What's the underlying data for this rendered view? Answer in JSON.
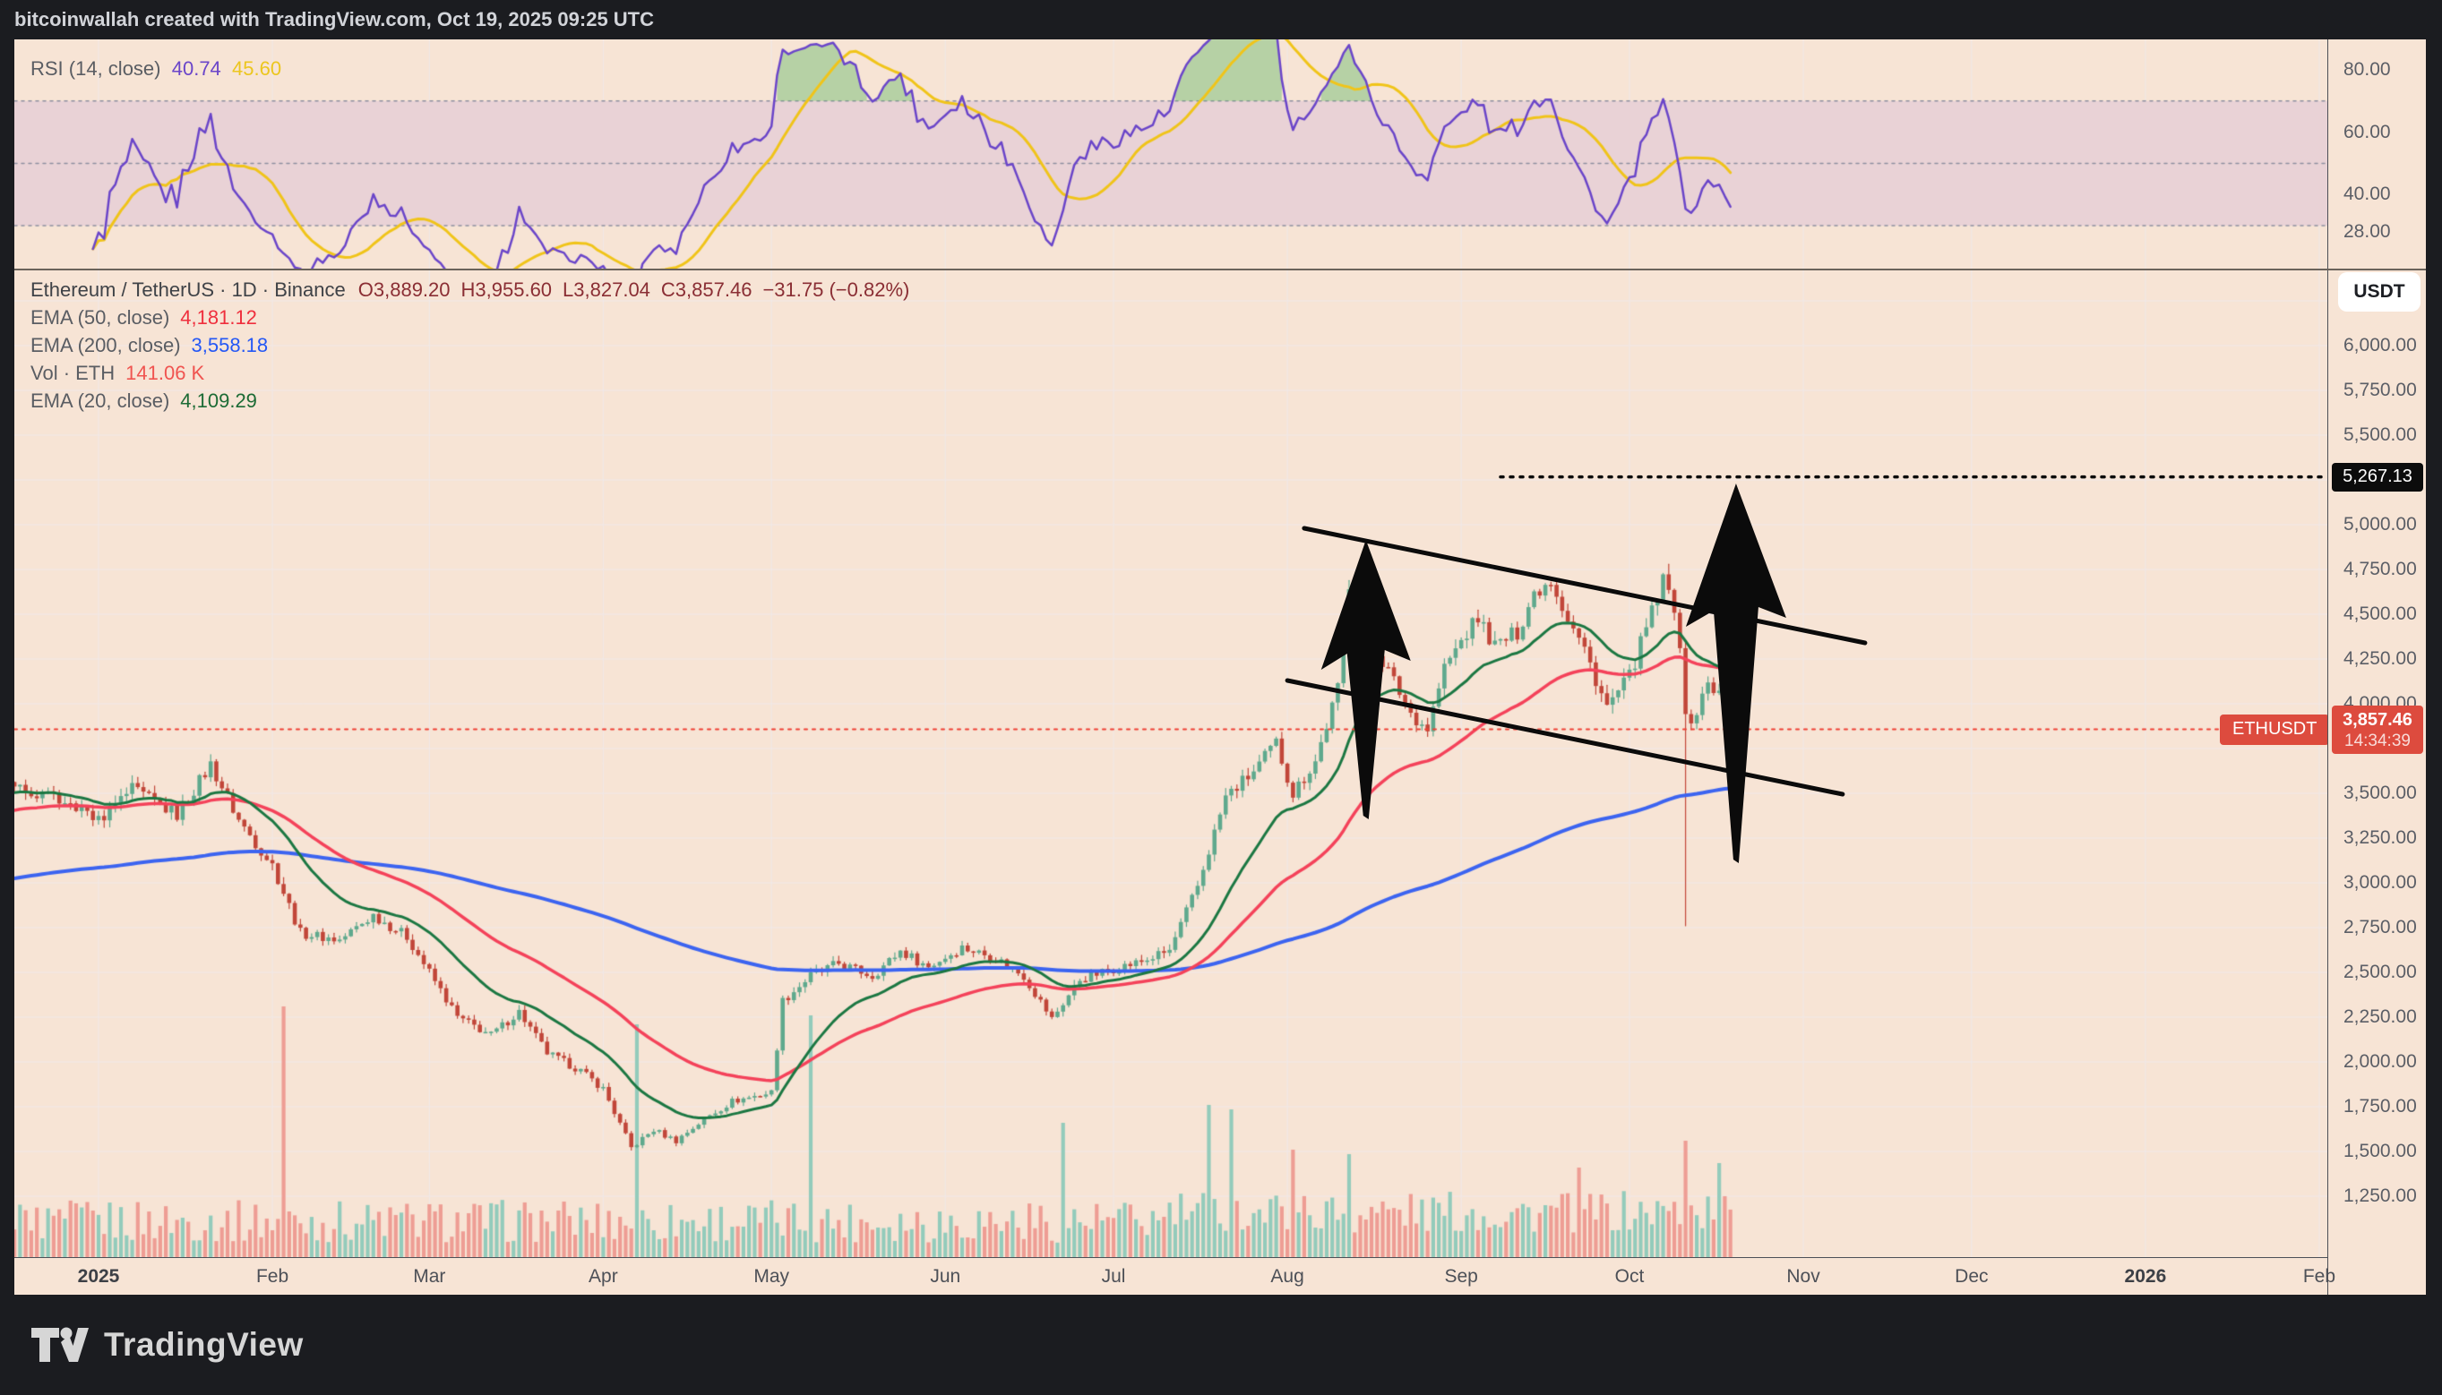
{
  "header": {
    "title": "bitcoinwallah created with TradingView.com, Oct 19, 2025 09:25 UTC"
  },
  "rsi_pane": {
    "label": "RSI (14, close)",
    "value": "40.74",
    "ma_value": "45.60",
    "value_color": "#6a45c9",
    "ma_color": "#ecc61e",
    "ticks": [
      {
        "label": "80.00",
        "value": 80
      },
      {
        "label": "60.00",
        "value": 60
      },
      {
        "label": "40.00",
        "value": 40
      },
      {
        "label": "28.00",
        "value": 28
      }
    ]
  },
  "main_pane": {
    "legend": {
      "title": "Ethereum / TetherUS · 1D · Binance",
      "open": "O3,889.20",
      "high": "H3,955.60",
      "low": "L3,827.04",
      "close": "C3,857.46",
      "change": "−31.75 (−0.82%)"
    },
    "indicators": [
      {
        "label": "EMA (50, close)",
        "value": "4,181.12",
        "color": "#ef2f3d"
      },
      {
        "label": "EMA (200, close)",
        "value": "3,558.18",
        "color": "#2457f5"
      },
      {
        "label": "Vol · ETH",
        "value": "141.06 K",
        "color": "#f05450"
      },
      {
        "label": "EMA (20, close)",
        "value": "4,109.29",
        "color": "#1c6b35"
      }
    ]
  },
  "price_scale": {
    "currency_button": "USDT",
    "symbol_label": "ETHUSDT",
    "target_label": {
      "text": "5,267.13",
      "value": 5267.13
    },
    "price_label": {
      "text": "3,857.46",
      "countdown": "14:34:39",
      "value": 3857.46,
      "color": "#dd4b3e"
    },
    "ticks": [
      {
        "label": "6,000.00",
        "value": 6000
      },
      {
        "label": "5,750.00",
        "value": 5750
      },
      {
        "label": "5,500.00",
        "value": 5500
      },
      {
        "label": "5,000.00",
        "value": 5000
      },
      {
        "label": "4,750.00",
        "value": 4750
      },
      {
        "label": "4,500.00",
        "value": 4500
      },
      {
        "label": "4,250.00",
        "value": 4250
      },
      {
        "label": "4,000.00",
        "value": 4000
      },
      {
        "label": "3,500.00",
        "value": 3500
      },
      {
        "label": "3,250.00",
        "value": 3250
      },
      {
        "label": "3,000.00",
        "value": 3000
      },
      {
        "label": "2,750.00",
        "value": 2750
      },
      {
        "label": "2,500.00",
        "value": 2500
      },
      {
        "label": "2,250.00",
        "value": 2250
      },
      {
        "label": "2,000.00",
        "value": 2000
      },
      {
        "label": "1,750.00",
        "value": 1750
      },
      {
        "label": "1,500.00",
        "value": 1500
      },
      {
        "label": "1,250.00",
        "value": 1250
      }
    ]
  },
  "time_scale": {
    "ticks": [
      {
        "label": "2025",
        "t": "2025-01-01",
        "bold": true
      },
      {
        "label": "Feb",
        "t": "2025-02-01"
      },
      {
        "label": "Mar",
        "t": "2025-03-01"
      },
      {
        "label": "Apr",
        "t": "2025-04-01"
      },
      {
        "label": "May",
        "t": "2025-05-01"
      },
      {
        "label": "Jun",
        "t": "2025-06-01"
      },
      {
        "label": "Jul",
        "t": "2025-07-01"
      },
      {
        "label": "Aug",
        "t": "2025-08-01"
      },
      {
        "label": "Sep",
        "t": "2025-09-01"
      },
      {
        "label": "Oct",
        "t": "2025-10-01"
      },
      {
        "label": "Nov",
        "t": "2025-11-01"
      },
      {
        "label": "Dec",
        "t": "2025-12-01"
      },
      {
        "label": "2026",
        "t": "2026-01-01",
        "bold": true
      },
      {
        "label": "Feb",
        "t": "2026-02-01"
      }
    ]
  },
  "footer": {
    "logo_text": "TradingView"
  },
  "chart_data": {
    "type": "candlestick",
    "symbol": "ETHUSDT",
    "name": "Ethereum / TetherUS",
    "exchange": "Binance",
    "interval": "1D",
    "ohlc_last": {
      "open": 3889.2,
      "high": 3955.6,
      "low": 3827.04,
      "close": 3857.46,
      "change": -31.75,
      "change_pct": -0.82
    },
    "ema_values": {
      "ema20": 4109.29,
      "ema50": 4181.12,
      "ema200": 3558.18
    },
    "volume_last": "141.06 K",
    "current_price": 3857.46,
    "target_price": 5267.13,
    "price_axis_range": [
      910,
      6420
    ],
    "time_range": [
      "2024-12-17",
      "2026-02-07"
    ],
    "price_path": [
      [
        "2024-12-17",
        3550
      ],
      [
        "2024-12-24",
        3480
      ],
      [
        "2025-01-01",
        3350
      ],
      [
        "2025-01-07",
        3520
      ],
      [
        "2025-01-15",
        3380
      ],
      [
        "2025-01-21",
        3660
      ],
      [
        "2025-01-26",
        3350
      ],
      [
        "2025-02-01",
        3100
      ],
      [
        "2025-02-06",
        2720
      ],
      [
        "2025-02-13",
        2680
      ],
      [
        "2025-02-19",
        2820
      ],
      [
        "2025-02-25",
        2700
      ],
      [
        "2025-03-01",
        2500
      ],
      [
        "2025-03-06",
        2250
      ],
      [
        "2025-03-12",
        2150
      ],
      [
        "2025-03-17",
        2280
      ],
      [
        "2025-03-22",
        2050
      ],
      [
        "2025-03-28",
        1950
      ],
      [
        "2025-04-01",
        1850
      ],
      [
        "2025-04-06",
        1520
      ],
      [
        "2025-04-10",
        1620
      ],
      [
        "2025-04-14",
        1560
      ],
      [
        "2025-04-19",
        1680
      ],
      [
        "2025-04-24",
        1780
      ],
      [
        "2025-05-01",
        1830
      ],
      [
        "2025-05-03",
        2340
      ],
      [
        "2025-05-08",
        2480
      ],
      [
        "2025-05-13",
        2550
      ],
      [
        "2025-05-19",
        2480
      ],
      [
        "2025-05-24",
        2620
      ],
      [
        "2025-05-29",
        2530
      ],
      [
        "2025-06-04",
        2640
      ],
      [
        "2025-06-10",
        2580
      ],
      [
        "2025-06-15",
        2480
      ],
      [
        "2025-06-20",
        2240
      ],
      [
        "2025-06-25",
        2460
      ],
      [
        "2025-07-01",
        2520
      ],
      [
        "2025-07-06",
        2560
      ],
      [
        "2025-07-11",
        2620
      ],
      [
        "2025-07-16",
        2980
      ],
      [
        "2025-07-21",
        3480
      ],
      [
        "2025-07-26",
        3620
      ],
      [
        "2025-07-30",
        3780
      ],
      [
        "2025-08-02",
        3500
      ],
      [
        "2025-08-06",
        3680
      ],
      [
        "2025-08-10",
        4080
      ],
      [
        "2025-08-12",
        4680
      ],
      [
        "2025-08-15",
        4420
      ],
      [
        "2025-08-19",
        4180
      ],
      [
        "2025-08-23",
        3950
      ],
      [
        "2025-08-26",
        3860
      ],
      [
        "2025-08-29",
        4200
      ],
      [
        "2025-09-01",
        4350
      ],
      [
        "2025-09-04",
        4480
      ],
      [
        "2025-09-07",
        4320
      ],
      [
        "2025-09-11",
        4400
      ],
      [
        "2025-09-14",
        4620
      ],
      [
        "2025-09-17",
        4700
      ],
      [
        "2025-09-20",
        4480
      ],
      [
        "2025-09-23",
        4300
      ],
      [
        "2025-09-27",
        3980
      ],
      [
        "2025-10-01",
        4150
      ],
      [
        "2025-10-04",
        4420
      ],
      [
        "2025-10-07",
        4680
      ],
      [
        "2025-10-09",
        4550
      ],
      [
        "2025-10-10",
        4350
      ],
      [
        "2025-10-11",
        3900
      ],
      [
        "2025-10-13",
        3950
      ],
      [
        "2025-10-15",
        4120
      ],
      [
        "2025-10-17",
        4050
      ],
      [
        "2025-10-19",
        3857.46
      ]
    ],
    "events": [
      {
        "t": "2025-10-11",
        "low": 2760,
        "note": "flash-crash wick"
      }
    ],
    "volume_spikes": [
      [
        "2025-02-03",
        280
      ],
      [
        "2025-04-07",
        260
      ],
      [
        "2025-05-08",
        270
      ],
      [
        "2025-06-22",
        150
      ],
      [
        "2025-07-18",
        170
      ],
      [
        "2025-07-22",
        165
      ],
      [
        "2025-08-02",
        120
      ],
      [
        "2025-08-12",
        115
      ],
      [
        "2025-09-22",
        100
      ],
      [
        "2025-10-11",
        130
      ],
      [
        "2025-10-17",
        105
      ]
    ],
    "rsi": {
      "period": 14,
      "current": 40.74,
      "ma_current": 45.6,
      "levels": [
        70,
        50,
        30
      ],
      "axis_ticks": [
        80,
        60,
        40,
        28
      ]
    },
    "annotations": {
      "channel_upper": {
        "from": [
          "2025-08-04",
          4980
        ],
        "to": [
          "2025-11-12",
          4340
        ]
      },
      "channel_lower": {
        "from": [
          "2025-08-01",
          4130
        ],
        "to": [
          "2025-11-08",
          3495
        ]
      },
      "arrow_1": {
        "tip": [
          "2025-08-15",
          4915
        ],
        "tail_price": 3355
      },
      "arrow_2": {
        "tip": [
          "2025-10-20",
          5230
        ],
        "tail_price": 3110
      },
      "target_line": {
        "from": "2025-09-08",
        "price": 5267.13
      }
    },
    "colors": {
      "up": "#5fa98d",
      "down": "#c14639",
      "vol_up": "#93cbbb",
      "vol_down": "#ee9d94",
      "ema20": "#1b7742",
      "ema50": "#f4425a",
      "ema200": "#3c64f0",
      "rsi": "#6a45c9",
      "rsi_ma": "#f0c419",
      "rsi_band": "#e9d2d6",
      "rsi_fill": "#66bb6a",
      "grid": "#efe8e9",
      "dashed": "#8d90a0",
      "price_line": "#ef3e33",
      "annotation": "#0b0b0b",
      "background": "#f7e4d5"
    }
  }
}
